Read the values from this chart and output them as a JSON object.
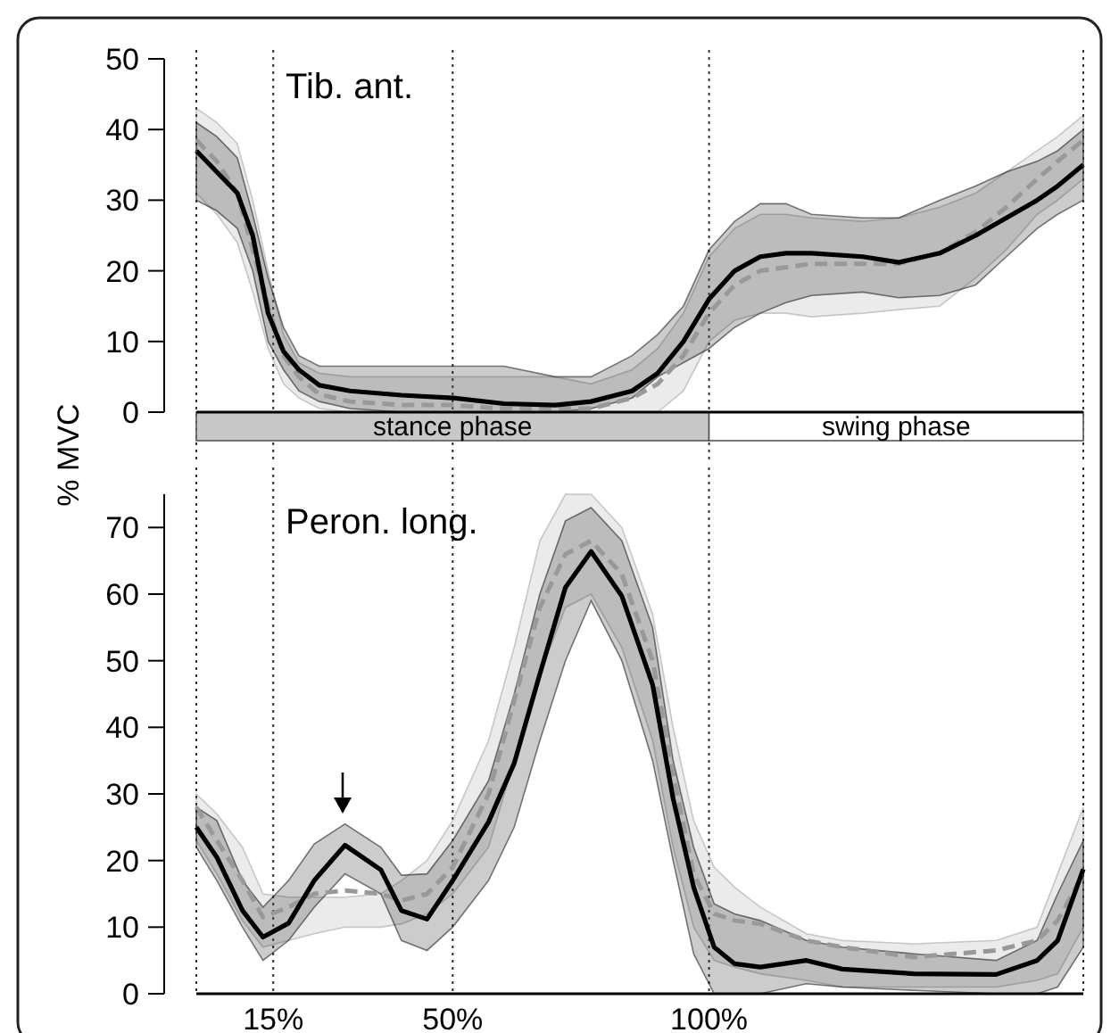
{
  "chart_data": [
    {
      "type": "line",
      "title": "Tib. ant.",
      "ylabel": "% MVC",
      "x": [
        0,
        4,
        8,
        11,
        14,
        17,
        20,
        24,
        30,
        40,
        50,
        60,
        70,
        77,
        85,
        90,
        95,
        100,
        105,
        110,
        115,
        120,
        130,
        137,
        145,
        152,
        158,
        164,
        168,
        173
      ],
      "xlim": [
        0,
        173
      ],
      "ylim": [
        0,
        50
      ],
      "yticks": [
        0,
        10,
        20,
        30,
        40,
        50
      ],
      "tick_labels": "y",
      "annotations": [
        "stance phase",
        "swing phase"
      ],
      "series": [
        {
          "color": "#999999",
          "line_style": "dashed",
          "values": [
            38.5,
            35.5,
            31,
            23,
            15,
            8,
            5,
            2.5,
            1.5,
            1,
            1,
            0.5,
            0.5,
            0.5,
            2,
            4,
            8,
            14,
            18,
            20,
            20.5,
            21,
            21,
            21,
            22.5,
            25.5,
            29,
            33,
            35.5,
            38.5
          ],
          "lower": [
            31,
            28,
            24,
            17,
            9,
            4,
            2,
            0.5,
            0,
            0,
            0,
            0,
            0,
            0,
            0,
            0,
            3,
            10,
            13,
            14,
            14,
            13.5,
            14,
            14.5,
            15,
            19,
            23,
            28,
            30,
            33
          ],
          "upper": [
            43,
            41,
            38,
            30,
            20,
            11,
            7,
            5.5,
            5,
            5,
            5,
            5,
            5,
            4,
            6,
            9,
            14,
            22,
            26,
            28,
            28,
            27.5,
            27,
            27.5,
            29,
            31,
            34,
            37,
            39,
            42
          ]
        },
        {
          "color": "#000000",
          "line_style": "solid",
          "values": [
            37,
            34,
            31,
            25,
            14,
            8.6,
            6,
            3.8,
            3,
            2.4,
            2,
            1.2,
            1,
            1.5,
            3,
            5.5,
            10,
            16,
            20,
            22,
            22.5,
            22.5,
            22,
            21.2,
            22.5,
            25,
            27.5,
            30,
            32,
            35
          ],
          "lower": [
            30,
            28.5,
            26,
            20,
            10,
            6,
            3,
            1.5,
            0.5,
            0,
            0,
            0,
            0,
            0.5,
            2,
            5,
            7,
            9,
            12,
            14,
            15.5,
            16.5,
            17,
            16.2,
            16.5,
            18,
            22,
            26,
            28,
            30
          ],
          "upper": [
            41,
            39,
            36,
            28,
            19,
            12,
            8,
            6.5,
            6.5,
            6.5,
            6.5,
            6.5,
            5,
            5,
            8,
            11,
            15,
            23,
            27,
            29.5,
            29.5,
            28,
            27.5,
            27.5,
            30,
            32,
            34,
            35.5,
            37,
            40
          ]
        }
      ],
      "ref_lines": [
        {
          "axis": "x",
          "value": 15,
          "line_style": "dotted"
        },
        {
          "axis": "x",
          "value": 50,
          "line_style": "dotted"
        },
        {
          "axis": "x",
          "value": 100,
          "line_style": "dotted"
        }
      ]
    },
    {
      "type": "line",
      "title": "Peron. long.",
      "x": [
        0,
        4,
        9,
        13,
        18,
        23,
        29,
        36,
        40,
        45,
        50,
        57,
        62,
        67,
        72,
        77,
        83,
        89,
        93,
        97,
        101,
        105,
        110,
        119,
        126,
        140,
        156,
        164,
        168,
        173
      ],
      "xlim": [
        0,
        173
      ],
      "xticks": [
        {
          "value": 15,
          "label": "15%"
        },
        {
          "value": 50,
          "label": "50%"
        },
        {
          "value": 100,
          "label": "100%"
        }
      ],
      "ylim": [
        0,
        75
      ],
      "yticks": [
        0,
        10,
        20,
        30,
        40,
        50,
        60,
        70
      ],
      "series": [
        {
          "color": "#999999",
          "line_style": "dashed",
          "values": [
            28,
            23,
            17,
            11.5,
            13,
            15,
            15.5,
            15,
            14,
            15,
            19,
            30,
            44,
            58,
            66,
            68,
            63,
            50,
            33,
            18,
            12,
            11,
            10.5,
            8,
            7,
            5.5,
            6.5,
            8,
            11,
            18
          ],
          "lower": [
            23,
            18,
            11,
            7,
            8,
            9,
            10,
            10,
            10.5,
            12,
            15,
            22,
            35,
            48,
            58,
            60,
            52,
            38,
            22,
            10,
            5,
            4,
            3,
            2,
            1,
            1,
            1,
            2,
            3,
            10
          ],
          "upper": [
            30,
            27,
            22,
            15,
            14.5,
            14.5,
            14.5,
            15,
            17,
            20,
            26,
            38,
            52,
            68,
            75,
            75,
            70,
            57,
            40,
            26,
            19,
            16,
            13,
            9,
            8,
            7.5,
            8,
            10,
            18,
            28
          ]
        },
        {
          "color": "#000000",
          "line_style": "solid",
          "values": [
            25,
            20.5,
            12.5,
            8.5,
            10.6,
            17,
            22.3,
            18.6,
            12.5,
            11.2,
            17,
            25.8,
            34.6,
            48,
            61,
            66.4,
            59.7,
            46.4,
            29.3,
            16,
            7,
            4.5,
            4,
            5,
            3.7,
            3,
            2.9,
            5,
            8,
            18.7
          ],
          "lower": [
            22,
            17,
            10,
            5,
            8,
            13,
            18,
            15,
            8,
            6.5,
            10,
            17,
            25,
            38,
            50,
            59,
            50,
            35,
            20,
            6,
            0,
            0,
            0,
            1.5,
            1,
            0.5,
            0,
            0,
            1,
            7
          ],
          "upper": [
            28,
            26,
            17,
            13,
            17,
            22.5,
            25.5,
            22,
            17.8,
            18,
            23,
            32,
            45,
            60,
            71,
            73,
            68,
            55,
            35,
            22,
            13.5,
            12,
            11,
            8,
            7,
            6,
            5,
            8,
            15,
            23
          ]
        }
      ],
      "ref_lines": [
        {
          "axis": "x",
          "value": 15,
          "line_style": "dotted"
        },
        {
          "axis": "x",
          "value": 50,
          "line_style": "dotted"
        },
        {
          "axis": "x",
          "value": 100,
          "line_style": "dotted"
        }
      ]
    }
  ]
}
